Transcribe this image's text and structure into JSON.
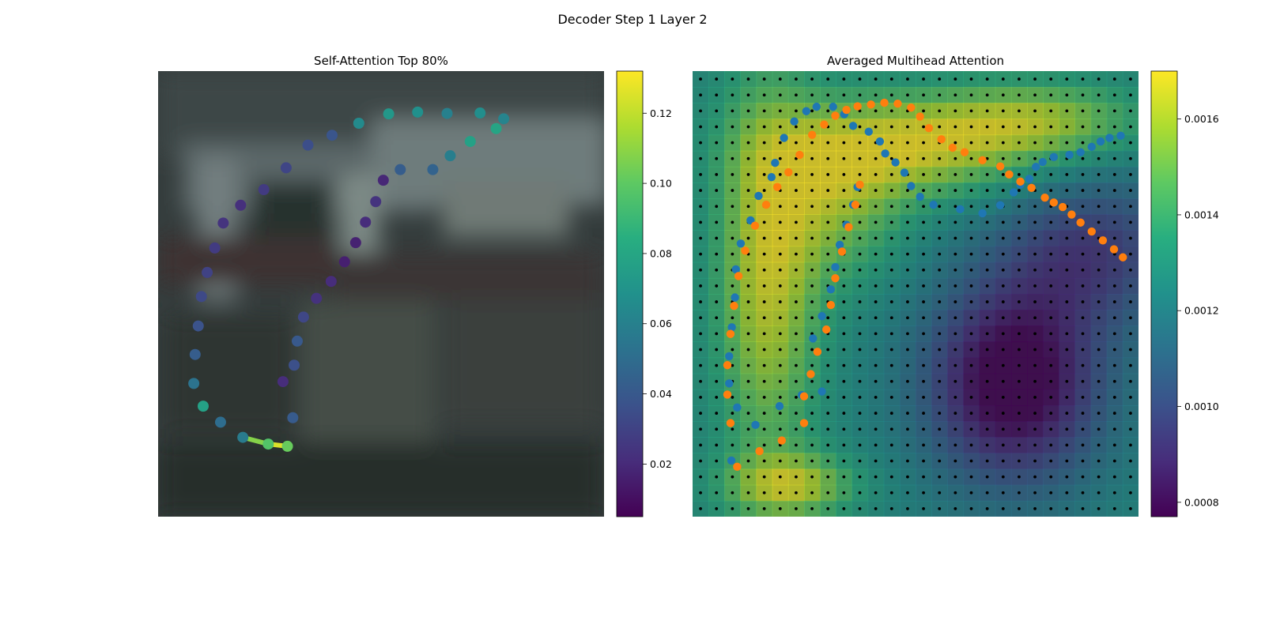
{
  "figure": {
    "title": "Decoder Step 1 Layer 2"
  },
  "chart_data": [
    {
      "type": "scatter",
      "title": "Self-Attention Top 80%",
      "background": "blurred photo of a parked van (dark gray/teal tones)",
      "xlim": [
        0,
        1
      ],
      "ylim": [
        1,
        0
      ],
      "colormap": "viridis",
      "colorbar": {
        "min": 0.005,
        "max": 0.132,
        "ticks": [
          0.02,
          0.04,
          0.06,
          0.08,
          0.1,
          0.12
        ],
        "tick_labels": [
          "0.02",
          "0.04",
          "0.06",
          "0.08",
          "0.10",
          "0.12"
        ]
      },
      "points": [
        {
          "x": 0.19,
          "y": 0.822,
          "v": 0.057
        },
        {
          "x": 0.247,
          "y": 0.837,
          "v": 0.097
        },
        {
          "x": 0.29,
          "y": 0.842,
          "v": 0.102
        },
        {
          "x": 0.14,
          "y": 0.788,
          "v": 0.05
        },
        {
          "x": 0.101,
          "y": 0.752,
          "v": 0.077
        },
        {
          "x": 0.08,
          "y": 0.701,
          "v": 0.053
        },
        {
          "x": 0.083,
          "y": 0.636,
          "v": 0.042
        },
        {
          "x": 0.09,
          "y": 0.572,
          "v": 0.037
        },
        {
          "x": 0.097,
          "y": 0.506,
          "v": 0.033
        },
        {
          "x": 0.11,
          "y": 0.452,
          "v": 0.03
        },
        {
          "x": 0.127,
          "y": 0.397,
          "v": 0.027
        },
        {
          "x": 0.146,
          "y": 0.341,
          "v": 0.024
        },
        {
          "x": 0.185,
          "y": 0.301,
          "v": 0.022
        },
        {
          "x": 0.237,
          "y": 0.266,
          "v": 0.027
        },
        {
          "x": 0.287,
          "y": 0.217,
          "v": 0.031
        },
        {
          "x": 0.336,
          "y": 0.166,
          "v": 0.035
        },
        {
          "x": 0.39,
          "y": 0.144,
          "v": 0.038
        },
        {
          "x": 0.45,
          "y": 0.117,
          "v": 0.065
        },
        {
          "x": 0.517,
          "y": 0.096,
          "v": 0.072
        },
        {
          "x": 0.582,
          "y": 0.092,
          "v": 0.068
        },
        {
          "x": 0.648,
          "y": 0.095,
          "v": 0.06
        },
        {
          "x": 0.722,
          "y": 0.094,
          "v": 0.067
        },
        {
          "x": 0.775,
          "y": 0.107,
          "v": 0.062
        },
        {
          "x": 0.758,
          "y": 0.129,
          "v": 0.079
        },
        {
          "x": 0.7,
          "y": 0.158,
          "v": 0.077
        },
        {
          "x": 0.655,
          "y": 0.19,
          "v": 0.059
        },
        {
          "x": 0.616,
          "y": 0.221,
          "v": 0.045
        },
        {
          "x": 0.543,
          "y": 0.221,
          "v": 0.042
        },
        {
          "x": 0.505,
          "y": 0.245,
          "v": 0.019
        },
        {
          "x": 0.488,
          "y": 0.293,
          "v": 0.024
        },
        {
          "x": 0.465,
          "y": 0.339,
          "v": 0.021
        },
        {
          "x": 0.443,
          "y": 0.385,
          "v": 0.017
        },
        {
          "x": 0.418,
          "y": 0.428,
          "v": 0.016
        },
        {
          "x": 0.388,
          "y": 0.472,
          "v": 0.021
        },
        {
          "x": 0.355,
          "y": 0.51,
          "v": 0.023
        },
        {
          "x": 0.326,
          "y": 0.552,
          "v": 0.032
        },
        {
          "x": 0.312,
          "y": 0.606,
          "v": 0.04
        },
        {
          "x": 0.305,
          "y": 0.66,
          "v": 0.036
        },
        {
          "x": 0.28,
          "y": 0.697,
          "v": 0.021
        },
        {
          "x": 0.302,
          "y": 0.778,
          "v": 0.041
        }
      ],
      "segments": [
        {
          "x1": 0.19,
          "y1": 0.822,
          "x2": 0.247,
          "y2": 0.837,
          "v": 0.108
        },
        {
          "x1": 0.247,
          "y1": 0.837,
          "x2": 0.29,
          "y2": 0.842,
          "v": 0.125
        }
      ]
    },
    {
      "type": "heatmap",
      "title": "Averaged Multihead Attention",
      "xlim": [
        0,
        1
      ],
      "ylim": [
        1,
        0
      ],
      "colormap": "viridis",
      "colorbar": {
        "min": 0.00077,
        "max": 0.0017,
        "ticks": [
          0.0008,
          0.001,
          0.0012,
          0.0014,
          0.0016
        ],
        "tick_labels": [
          "0.0008",
          "0.0010",
          "0.0012",
          "0.0014",
          "0.0016"
        ]
      },
      "heatmap": {
        "rows": 28,
        "cols": 28,
        "alpha": 0.75,
        "blobs": [
          {
            "cx": 0.17,
            "cy": 0.45,
            "sx": 0.08,
            "sy": 0.3,
            "a": 0.0004
          },
          {
            "cx": 0.48,
            "cy": 0.17,
            "sx": 0.2,
            "sy": 0.08,
            "a": 0.0004
          },
          {
            "cx": 0.78,
            "cy": 0.11,
            "sx": 0.16,
            "sy": 0.06,
            "a": 0.0003
          },
          {
            "cx": 0.22,
            "cy": 0.93,
            "sx": 0.1,
            "sy": 0.05,
            "a": 0.00035
          },
          {
            "cx": 0.33,
            "cy": 0.3,
            "sx": 0.1,
            "sy": 0.12,
            "a": 0.00025
          },
          {
            "cx": 0.72,
            "cy": 0.7,
            "sx": 0.14,
            "sy": 0.16,
            "a": -0.00055
          },
          {
            "cx": 0.9,
            "cy": 0.4,
            "sx": 0.15,
            "sy": 0.12,
            "a": -0.0003
          }
        ],
        "base": 0.00125
      },
      "grid_dots": {
        "rows": 28,
        "cols": 28
      },
      "series": [
        {
          "color": "#1f77b4",
          "points": [
            [
              0.087,
              0.874
            ],
            [
              0.141,
              0.794
            ],
            [
              0.195,
              0.752
            ],
            [
              0.245,
              0.727
            ],
            [
              0.29,
              0.719
            ],
            [
              0.1,
              0.755
            ],
            [
              0.082,
              0.701
            ],
            [
              0.082,
              0.64
            ],
            [
              0.088,
              0.575
            ],
            [
              0.095,
              0.508
            ],
            [
              0.097,
              0.445
            ],
            [
              0.108,
              0.387
            ],
            [
              0.13,
              0.335
            ],
            [
              0.148,
              0.28
            ],
            [
              0.177,
              0.238
            ],
            [
              0.185,
              0.206
            ],
            [
              0.205,
              0.15
            ],
            [
              0.228,
              0.113
            ],
            [
              0.255,
              0.09
            ],
            [
              0.278,
              0.08
            ],
            [
              0.315,
              0.08
            ],
            [
              0.34,
              0.097
            ],
            [
              0.36,
              0.123
            ],
            [
              0.395,
              0.136
            ],
            [
              0.42,
              0.158
            ],
            [
              0.432,
              0.185
            ],
            [
              0.455,
              0.205
            ],
            [
              0.475,
              0.228
            ],
            [
              0.49,
              0.258
            ],
            [
              0.51,
              0.282
            ],
            [
              0.54,
              0.3
            ],
            [
              0.6,
              0.31
            ],
            [
              0.65,
              0.319
            ],
            [
              0.69,
              0.301
            ],
            [
              0.72,
              0.272
            ],
            [
              0.735,
              0.255
            ],
            [
              0.755,
              0.242
            ],
            [
              0.77,
              0.215
            ],
            [
              0.785,
              0.204
            ],
            [
              0.81,
              0.193
            ],
            [
              0.845,
              0.188
            ],
            [
              0.87,
              0.182
            ],
            [
              0.895,
              0.17
            ],
            [
              0.915,
              0.158
            ],
            [
              0.935,
              0.15
            ],
            [
              0.96,
              0.145
            ],
            [
              0.27,
              0.6
            ],
            [
              0.29,
              0.55
            ],
            [
              0.31,
              0.49
            ],
            [
              0.32,
              0.44
            ],
            [
              0.33,
              0.39
            ],
            [
              0.345,
              0.345
            ],
            [
              0.36,
              0.3
            ],
            [
              0.37,
              0.26
            ]
          ]
        },
        {
          "color": "#ff7f0e",
          "points": [
            [
              0.1,
              0.888
            ],
            [
              0.15,
              0.853
            ],
            [
              0.2,
              0.829
            ],
            [
              0.25,
              0.79
            ],
            [
              0.085,
              0.79
            ],
            [
              0.078,
              0.726
            ],
            [
              0.078,
              0.66
            ],
            [
              0.085,
              0.59
            ],
            [
              0.093,
              0.527
            ],
            [
              0.103,
              0.46
            ],
            [
              0.118,
              0.403
            ],
            [
              0.14,
              0.347
            ],
            [
              0.165,
              0.3
            ],
            [
              0.19,
              0.26
            ],
            [
              0.215,
              0.227
            ],
            [
              0.24,
              0.188
            ],
            [
              0.268,
              0.143
            ],
            [
              0.295,
              0.12
            ],
            [
              0.32,
              0.1
            ],
            [
              0.345,
              0.087
            ],
            [
              0.37,
              0.079
            ],
            [
              0.4,
              0.075
            ],
            [
              0.43,
              0.071
            ],
            [
              0.46,
              0.073
            ],
            [
              0.49,
              0.082
            ],
            [
              0.51,
              0.102
            ],
            [
              0.53,
              0.128
            ],
            [
              0.558,
              0.153
            ],
            [
              0.583,
              0.172
            ],
            [
              0.61,
              0.182
            ],
            [
              0.65,
              0.2
            ],
            [
              0.69,
              0.214
            ],
            [
              0.71,
              0.232
            ],
            [
              0.735,
              0.248
            ],
            [
              0.76,
              0.262
            ],
            [
              0.79,
              0.284
            ],
            [
              0.81,
              0.295
            ],
            [
              0.83,
              0.305
            ],
            [
              0.85,
              0.322
            ],
            [
              0.87,
              0.34
            ],
            [
              0.895,
              0.36
            ],
            [
              0.92,
              0.38
            ],
            [
              0.945,
              0.4
            ],
            [
              0.965,
              0.418
            ],
            [
              0.25,
              0.73
            ],
            [
              0.265,
              0.68
            ],
            [
              0.28,
              0.63
            ],
            [
              0.3,
              0.58
            ],
            [
              0.31,
              0.525
            ],
            [
              0.32,
              0.465
            ],
            [
              0.335,
              0.405
            ],
            [
              0.35,
              0.35
            ],
            [
              0.365,
              0.3
            ],
            [
              0.375,
              0.255
            ]
          ]
        }
      ]
    }
  ]
}
